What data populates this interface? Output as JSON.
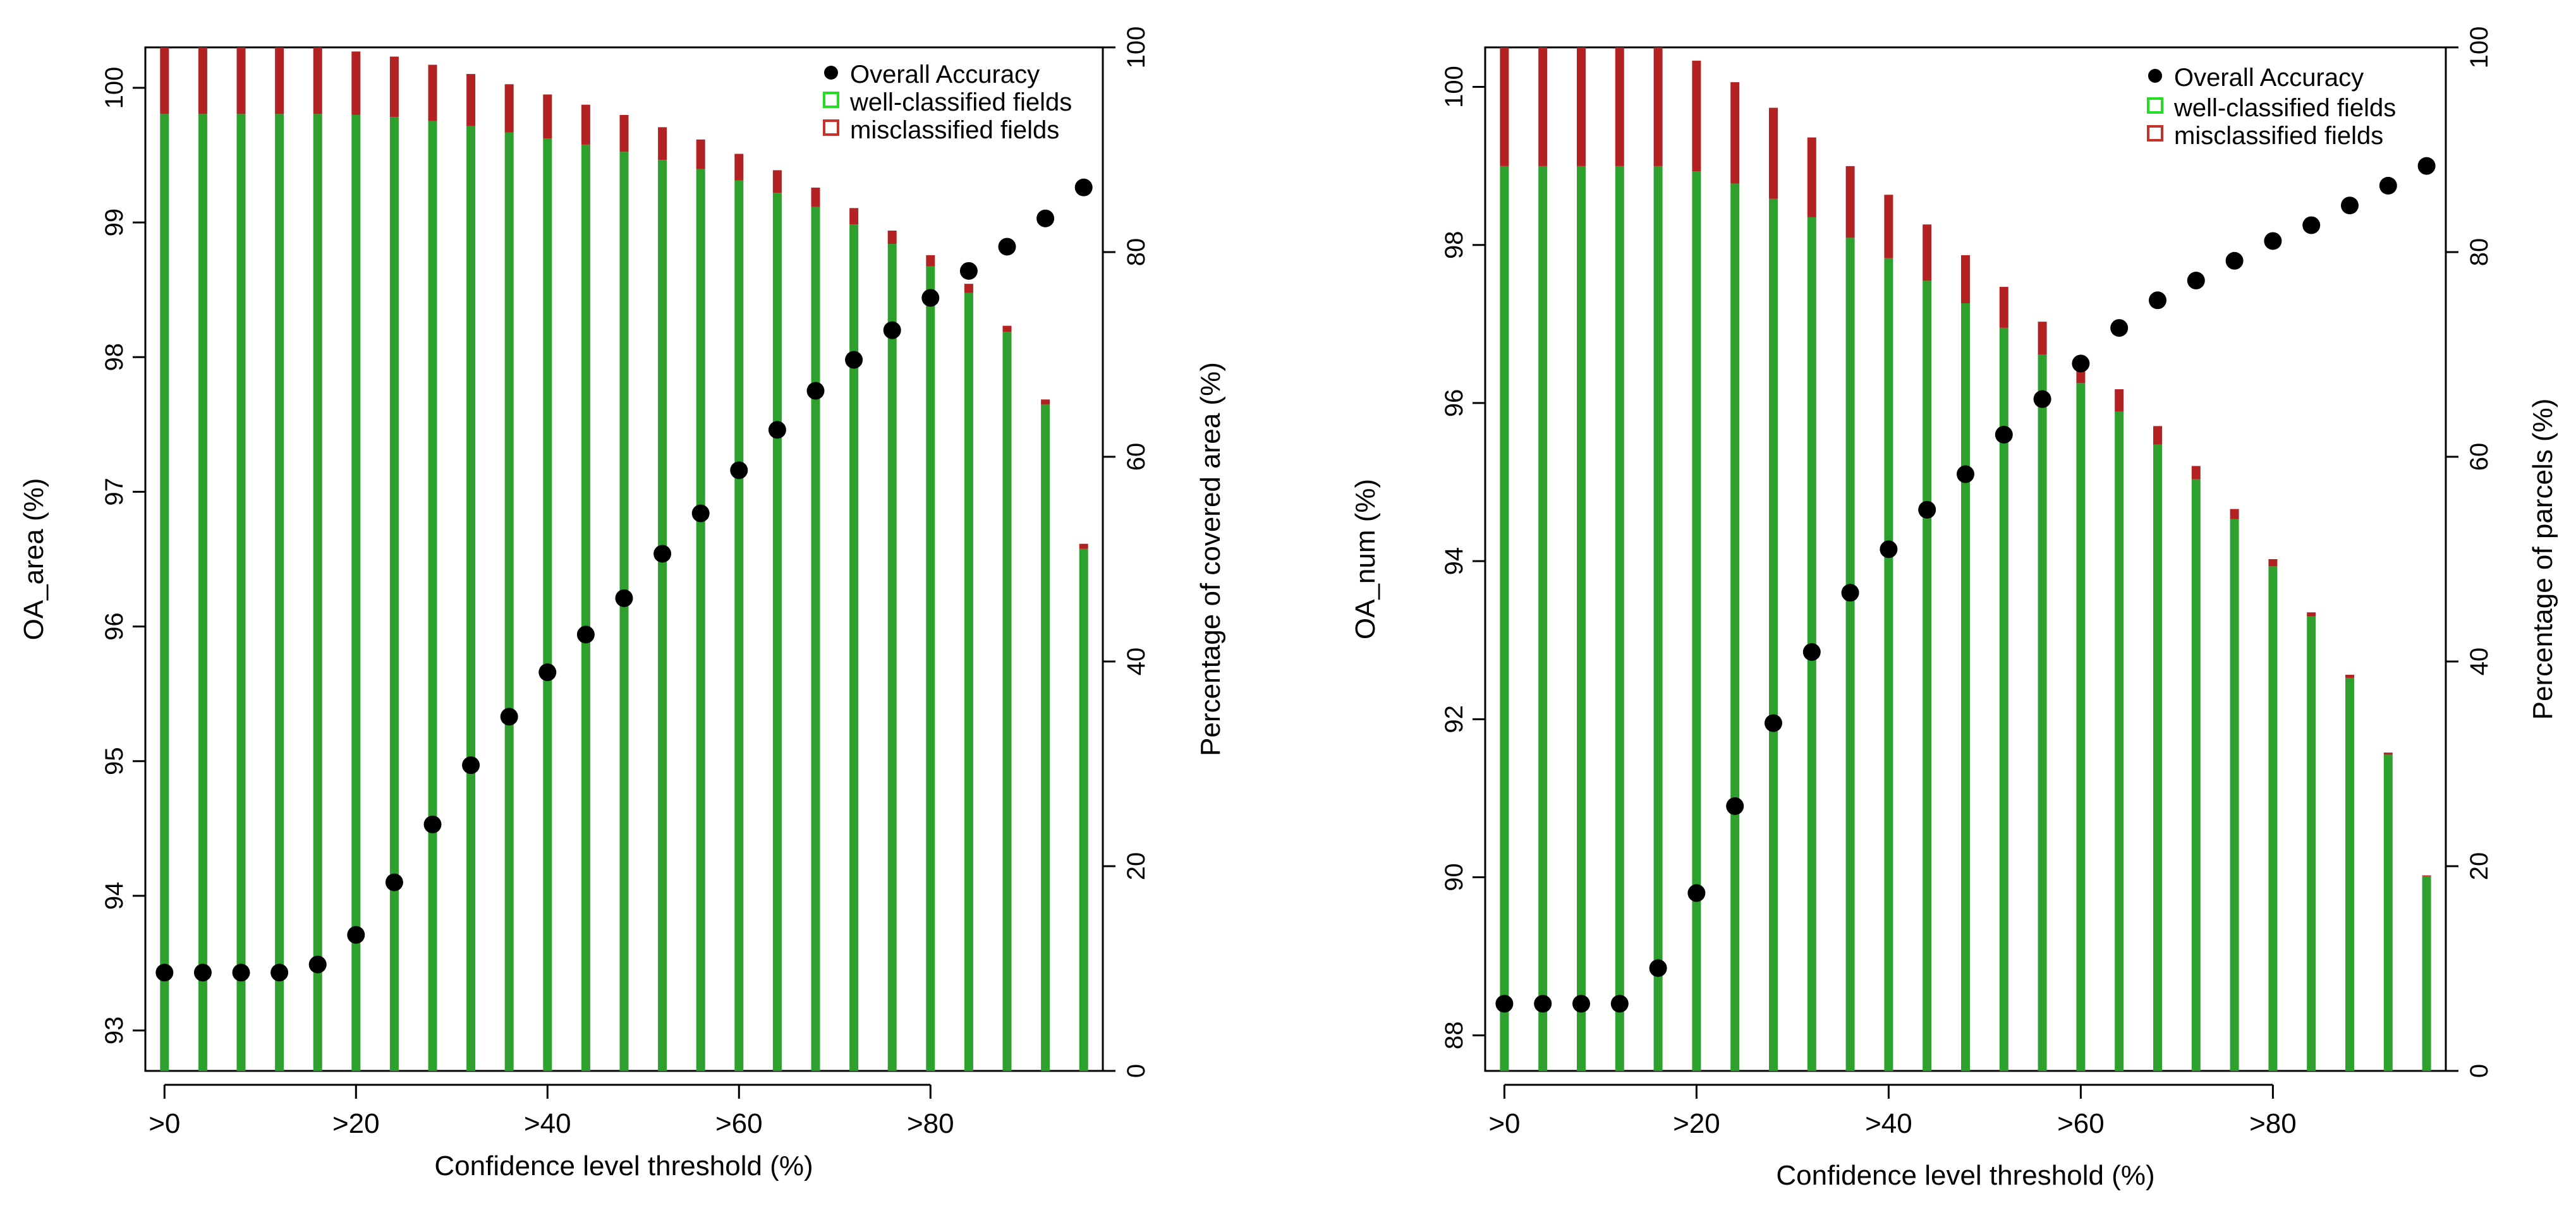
{
  "colors": {
    "well": "#2ea02e",
    "mis": "#b22222",
    "point": "#000000",
    "axis": "#000000",
    "legend_well_box": "#22dd22",
    "legend_mis_box": "#c8302a"
  },
  "chart_data": [
    {
      "type": "bar+scatter",
      "xlabel": "Confidence level threshold (%)",
      "ylabel": "OA_area (%)",
      "y2label": "Percentage of covered area (%)",
      "xlim": [
        -2,
        98
      ],
      "ylim": [
        92.7,
        100.3
      ],
      "y2lim": [
        0,
        100
      ],
      "xticks": [
        0,
        20,
        40,
        60,
        80
      ],
      "xtick_labels": [
        ">0",
        ">20",
        ">40",
        ">60",
        ">80"
      ],
      "yticks": [
        93,
        94,
        95,
        96,
        97,
        98,
        99,
        100
      ],
      "ytick_labels": [
        "93",
        "94",
        "95",
        "96",
        "97",
        "98",
        "99",
        "100"
      ],
      "y2ticks": [
        0,
        20,
        40,
        60,
        80,
        100
      ],
      "y2tick_labels": [
        "0",
        "20",
        "40",
        "60",
        "80",
        "100"
      ],
      "legend": [
        "Overall Accuracy",
        "well-classified fields",
        "misclassified fields"
      ],
      "x": [
        0,
        4,
        8,
        12,
        16,
        20,
        24,
        28,
        32,
        36,
        40,
        44,
        48,
        52,
        56,
        60,
        64,
        68,
        72,
        76,
        80,
        84,
        88,
        92,
        96
      ],
      "series": [
        {
          "name": "Overall Accuracy",
          "axis": "left",
          "values": [
            93.43,
            93.43,
            93.43,
            93.43,
            93.49,
            93.71,
            94.1,
            94.53,
            94.97,
            95.33,
            95.66,
            95.94,
            96.21,
            96.54,
            96.84,
            97.16,
            97.46,
            97.75,
            97.98,
            98.2,
            98.44,
            98.64,
            98.82,
            99.03,
            99.26
          ]
        },
        {
          "name": "well-classified fields",
          "axis": "right",
          "values": [
            93.5,
            93.5,
            93.5,
            93.5,
            93.5,
            93.4,
            93.2,
            92.8,
            92.3,
            91.7,
            91.1,
            90.5,
            89.8,
            89.0,
            88.1,
            87.0,
            85.8,
            84.4,
            82.7,
            80.8,
            78.6,
            76.0,
            72.2,
            65.1,
            51.0
          ]
        },
        {
          "name": "misclassified fields",
          "axis": "right",
          "values": [
            6.5,
            6.5,
            6.5,
            6.5,
            6.5,
            6.2,
            5.9,
            5.5,
            5.1,
            4.7,
            4.3,
            3.9,
            3.6,
            3.2,
            2.9,
            2.6,
            2.2,
            1.9,
            1.6,
            1.3,
            1.1,
            0.9,
            0.6,
            0.5,
            0.5
          ]
        }
      ]
    },
    {
      "type": "bar+scatter",
      "xlabel": "Confidence level threshold (%)",
      "ylabel": "OA_num (%)",
      "y2label": "Percentage of parcels (%)",
      "xlim": [
        -2,
        98
      ],
      "ylim": [
        87.55,
        100.5
      ],
      "y2lim": [
        0,
        100
      ],
      "xticks": [
        0,
        20,
        40,
        60,
        80
      ],
      "xtick_labels": [
        ">0",
        ">20",
        ">40",
        ">60",
        ">80"
      ],
      "yticks": [
        88,
        90,
        92,
        94,
        96,
        98,
        100
      ],
      "ytick_labels": [
        "88",
        "90",
        "92",
        "94",
        "96",
        "98",
        "100"
      ],
      "y2ticks": [
        0,
        20,
        40,
        60,
        80,
        100
      ],
      "y2tick_labels": [
        "0",
        "20",
        "40",
        "60",
        "80",
        "100"
      ],
      "legend": [
        "Overall Accuracy",
        "well-classified fields",
        "misclassified fields"
      ],
      "x": [
        0,
        4,
        8,
        12,
        16,
        20,
        24,
        28,
        32,
        36,
        40,
        44,
        48,
        52,
        56,
        60,
        64,
        68,
        72,
        76,
        80,
        84,
        88,
        92,
        96
      ],
      "series": [
        {
          "name": "Overall Accuracy",
          "axis": "left",
          "values": [
            88.4,
            88.4,
            88.4,
            88.4,
            88.85,
            89.8,
            90.9,
            91.95,
            92.85,
            93.6,
            94.15,
            94.65,
            95.1,
            95.6,
            96.05,
            96.5,
            96.95,
            97.3,
            97.55,
            97.8,
            98.05,
            98.25,
            98.5,
            98.75,
            99.0
          ]
        },
        {
          "name": "well-classified fields",
          "axis": "right",
          "values": [
            88.4,
            88.4,
            88.4,
            88.4,
            88.4,
            87.9,
            86.7,
            85.2,
            83.4,
            81.4,
            79.4,
            77.2,
            75.0,
            72.6,
            70.0,
            67.2,
            64.4,
            61.2,
            57.8,
            53.9,
            49.3,
            44.4,
            38.4,
            30.9,
            19.0
          ]
        },
        {
          "name": "misclassified fields",
          "axis": "right",
          "values": [
            11.6,
            11.6,
            11.6,
            11.6,
            11.6,
            10.8,
            9.9,
            8.9,
            7.8,
            7.0,
            6.2,
            5.5,
            4.7,
            4.0,
            3.2,
            2.7,
            2.2,
            1.8,
            1.3,
            1.0,
            0.7,
            0.4,
            0.3,
            0.2,
            0.1
          ]
        }
      ]
    }
  ]
}
